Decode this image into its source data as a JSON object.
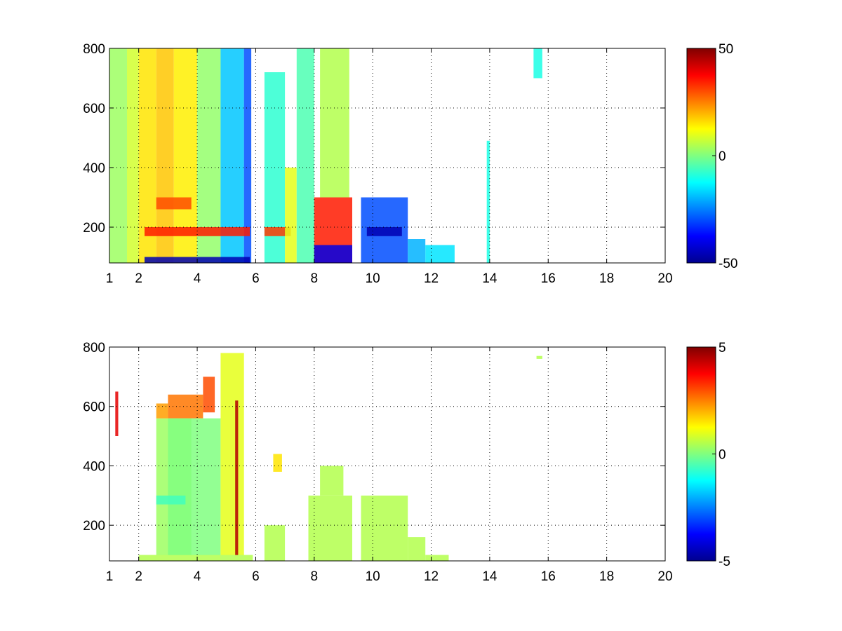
{
  "chart_data": [
    {
      "type": "heatmap",
      "title": "",
      "xlabel": "",
      "ylabel": "",
      "xlim": [
        1,
        20
      ],
      "ylim": [
        80,
        800
      ],
      "xticks": [
        1,
        2,
        4,
        6,
        8,
        10,
        12,
        14,
        16,
        18,
        20
      ],
      "yticks": [
        200,
        400,
        600,
        800
      ],
      "grid": true,
      "colormap": "jet",
      "colorbar": {
        "range": [
          -50,
          50
        ],
        "ticks": [
          -50,
          0,
          50
        ]
      },
      "cells": [
        [
          1.0,
          80,
          1.6,
          800,
          3
        ],
        [
          1.6,
          80,
          2.0,
          800,
          8
        ],
        [
          2.0,
          80,
          2.6,
          800,
          15
        ],
        [
          2.6,
          80,
          3.2,
          800,
          18
        ],
        [
          3.2,
          80,
          4.0,
          800,
          14
        ],
        [
          4.0,
          80,
          4.8,
          800,
          2
        ],
        [
          4.8,
          80,
          5.6,
          800,
          -18
        ],
        [
          5.6,
          80,
          5.85,
          800,
          -30
        ],
        [
          2.6,
          260,
          3.8,
          300,
          30
        ],
        [
          2.2,
          170,
          5.8,
          200,
          35
        ],
        [
          2.2,
          80,
          5.8,
          100,
          -45
        ],
        [
          6.3,
          80,
          7.0,
          720,
          -8
        ],
        [
          6.3,
          170,
          7.2,
          200,
          32
        ],
        [
          7.0,
          80,
          7.4,
          400,
          10
        ],
        [
          7.4,
          80,
          8.0,
          800,
          -5
        ],
        [
          8.0,
          80,
          9.3,
          300,
          35
        ],
        [
          8.0,
          80,
          9.3,
          140,
          -40
        ],
        [
          8.2,
          300,
          9.2,
          800,
          5
        ],
        [
          9.6,
          80,
          11.2,
          300,
          -30
        ],
        [
          9.8,
          170,
          11.0,
          200,
          -45
        ],
        [
          11.2,
          80,
          11.8,
          160,
          -20
        ],
        [
          11.8,
          80,
          12.8,
          140,
          -15
        ],
        [
          13.9,
          80,
          14.0,
          490,
          -10
        ],
        [
          15.5,
          700,
          15.8,
          800,
          -10
        ]
      ]
    },
    {
      "type": "heatmap",
      "title": "",
      "xlabel": "",
      "ylabel": "",
      "xlim": [
        1,
        20
      ],
      "ylim": [
        80,
        800
      ],
      "xticks": [
        1,
        2,
        4,
        6,
        8,
        10,
        12,
        14,
        16,
        18,
        20
      ],
      "yticks": [
        200,
        400,
        600,
        800
      ],
      "grid": true,
      "colormap": "jet",
      "colorbar": {
        "range": [
          -5,
          5
        ],
        "ticks": [
          -5,
          0,
          5
        ]
      },
      "cells": [
        [
          2.0,
          80,
          5.9,
          100,
          0.5
        ],
        [
          2.6,
          100,
          3.8,
          560,
          0.3
        ],
        [
          2.6,
          560,
          3.0,
          610,
          2.2
        ],
        [
          3.0,
          560,
          4.2,
          640,
          2.6
        ],
        [
          4.2,
          580,
          4.6,
          700,
          3.0
        ],
        [
          3.0,
          100,
          4.8,
          560,
          0.0
        ],
        [
          4.8,
          100,
          5.6,
          780,
          1.0
        ],
        [
          2.6,
          270,
          3.6,
          300,
          -0.6
        ],
        [
          5.3,
          100,
          5.4,
          620,
          4.5
        ],
        [
          1.2,
          500,
          1.3,
          650,
          4.0
        ],
        [
          6.3,
          80,
          7.0,
          200,
          0.5
        ],
        [
          6.6,
          380,
          6.9,
          440,
          1.5
        ],
        [
          7.8,
          80,
          9.3,
          300,
          0.5
        ],
        [
          8.2,
          300,
          9.0,
          400,
          0.5
        ],
        [
          9.6,
          80,
          11.2,
          300,
          0.5
        ],
        [
          11.2,
          80,
          11.8,
          160,
          0.5
        ],
        [
          11.8,
          80,
          12.6,
          100,
          0.5
        ],
        [
          15.6,
          760,
          15.8,
          770,
          0.5
        ]
      ]
    }
  ]
}
